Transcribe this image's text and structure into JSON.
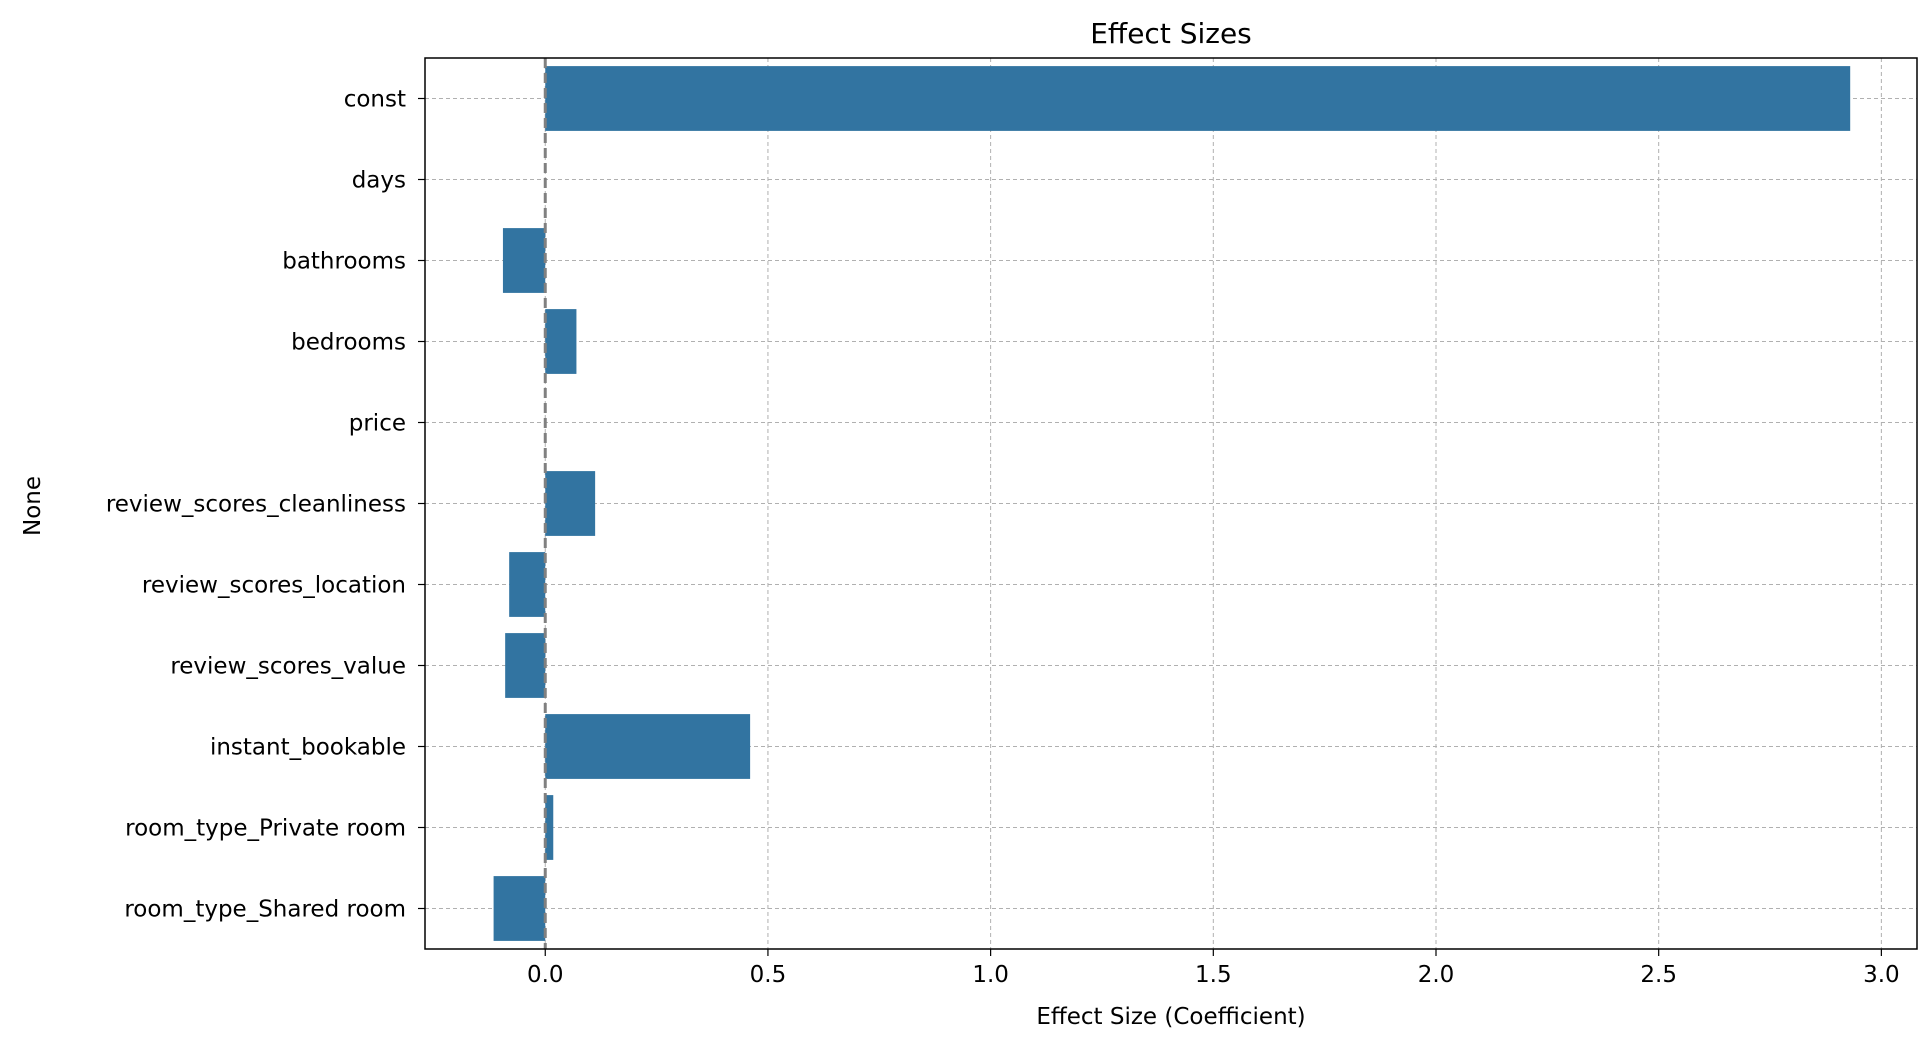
{
  "chart_data": {
    "type": "bar",
    "orientation": "horizontal",
    "title": "Effect Sizes",
    "xlabel": "Effect Size (Coefficient)",
    "ylabel": "None",
    "xlim": [
      -0.27,
      3.08
    ],
    "xticks": [
      0.0,
      0.5,
      1.0,
      1.5,
      2.0,
      2.5,
      3.0
    ],
    "xtick_labels": [
      "0.0",
      "0.5",
      "1.0",
      "1.5",
      "2.0",
      "2.5",
      "3.0"
    ],
    "grid": true,
    "reference_line": {
      "x": 0.0,
      "style": "dashed",
      "color": "#808080"
    },
    "bar_color": "#3274a1",
    "categories": [
      "const",
      "days",
      "bathrooms",
      "bedrooms",
      "price",
      "review_scores_cleanliness",
      "review_scores_location",
      "review_scores_value",
      "instant_bookable",
      "room_type_Private room",
      "room_type_Shared room"
    ],
    "values": [
      2.93,
      0.0,
      -0.095,
      0.07,
      0.0,
      0.112,
      -0.081,
      -0.09,
      0.46,
      0.018,
      -0.116
    ]
  }
}
